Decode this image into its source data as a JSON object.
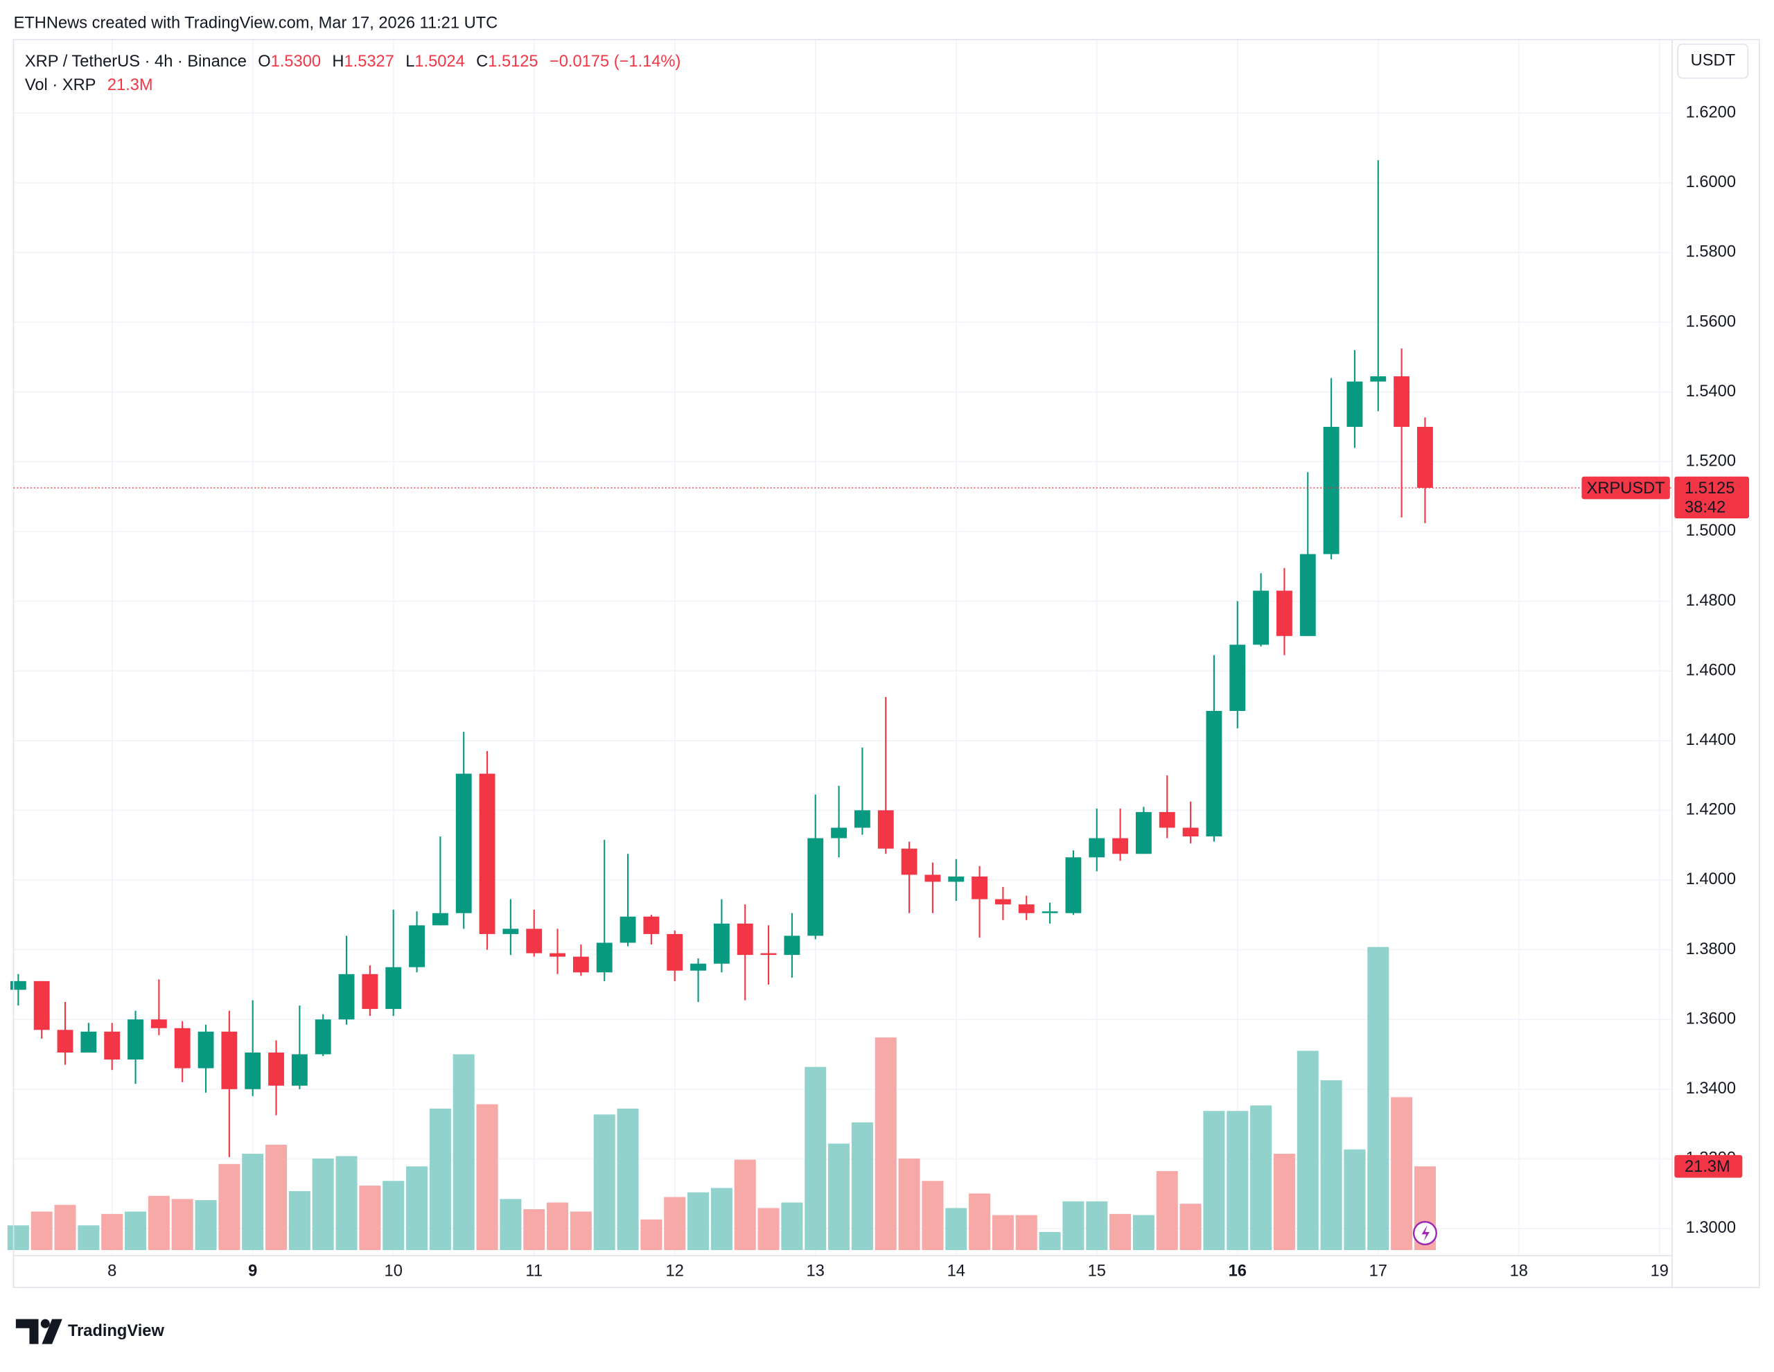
{
  "chart_data": {
    "type": "candlestick",
    "header": "ETHNews created with TradingView.com, Mar 17, 2026 11:21 UTC",
    "symbol": "XRP / TetherUS · 4h · Binance",
    "legend": {
      "open_key": "O",
      "open": "1.5300",
      "high_key": "H",
      "high": "1.5327",
      "low_key": "L",
      "low": "1.5024",
      "close_key": "C",
      "close": "1.5125",
      "change": "−0.0175 (−1.14%)"
    },
    "volume_title": "Vol · XRP",
    "volume_legend": "21.3M",
    "currency": "USDT",
    "price_tag": {
      "symbol": "XRPUSDT",
      "price": "1.5125",
      "countdown": "38:42"
    },
    "volume_tag": "21.3M",
    "brand": "TradingView",
    "x": [
      7.3333,
      7.5,
      7.6667,
      7.8333,
      8,
      8.1667,
      8.3333,
      8.5,
      8.6667,
      8.8333,
      9,
      9.1667,
      9.3333,
      9.5,
      9.6667,
      9.8333,
      10,
      10.1667,
      10.3333,
      10.5,
      10.6667,
      10.8333,
      11,
      11.1667,
      11.3333,
      11.5,
      11.6667,
      11.8333,
      12,
      12.1667,
      12.3333,
      12.5,
      12.6667,
      12.8333,
      13,
      13.1667,
      13.3333,
      13.5,
      13.6667,
      13.8333,
      14,
      14.1667,
      14.3333,
      14.5,
      14.6667,
      14.8333,
      15,
      15.1667,
      15.3333,
      15.5,
      15.6667,
      15.8333,
      16,
      16.1667,
      16.3333,
      16.5,
      16.6667,
      16.8333,
      17,
      17.1667,
      17.3333
    ],
    "open": [
      1.3685,
      1.371,
      1.357,
      1.3505,
      1.3565,
      1.3485,
      1.36,
      1.3575,
      1.346,
      1.3565,
      1.34,
      1.3505,
      1.341,
      1.35,
      1.36,
      1.373,
      1.363,
      1.375,
      1.387,
      1.3905,
      1.4305,
      1.3845,
      1.386,
      1.379,
      1.378,
      1.3735,
      1.382,
      1.3895,
      1.3845,
      1.374,
      1.376,
      1.3875,
      1.379,
      1.3785,
      1.384,
      1.412,
      1.415,
      1.42,
      1.409,
      1.4015,
      1.3995,
      1.401,
      1.3945,
      1.393,
      1.3905,
      1.3905,
      1.4065,
      1.412,
      1.4075,
      1.4195,
      1.415,
      1.4125,
      1.4485,
      1.4675,
      1.483,
      1.47,
      1.4935,
      1.53,
      1.543,
      1.5445,
      1.53
    ],
    "high": [
      1.373,
      1.371,
      1.365,
      1.359,
      1.359,
      1.3625,
      1.3715,
      1.3595,
      1.3585,
      1.3625,
      1.3655,
      1.354,
      1.364,
      1.3615,
      1.384,
      1.3755,
      1.3915,
      1.391,
      1.4125,
      1.4425,
      1.437,
      1.3945,
      1.3915,
      1.386,
      1.3815,
      1.4115,
      1.4075,
      1.39,
      1.3855,
      1.3775,
      1.3945,
      1.393,
      1.387,
      1.3905,
      1.4245,
      1.427,
      1.438,
      1.4525,
      1.411,
      1.405,
      1.406,
      1.404,
      1.398,
      1.3955,
      1.3935,
      1.4085,
      1.4205,
      1.4205,
      1.421,
      1.43,
      1.4225,
      1.4645,
      1.48,
      1.488,
      1.4895,
      1.517,
      1.544,
      1.552,
      1.6065,
      1.5525,
      1.5327
    ],
    "low": [
      1.364,
      1.3545,
      1.347,
      1.3505,
      1.3455,
      1.3415,
      1.3555,
      1.342,
      1.339,
      1.3205,
      1.338,
      1.3325,
      1.34,
      1.3495,
      1.3585,
      1.361,
      1.361,
      1.3735,
      1.387,
      1.386,
      1.38,
      1.3785,
      1.378,
      1.373,
      1.3725,
      1.371,
      1.381,
      1.3815,
      1.371,
      1.365,
      1.3735,
      1.3655,
      1.37,
      1.372,
      1.383,
      1.4065,
      1.413,
      1.4075,
      1.3905,
      1.3905,
      1.394,
      1.3835,
      1.3885,
      1.3885,
      1.3875,
      1.39,
      1.4025,
      1.4055,
      1.4075,
      1.412,
      1.4105,
      1.411,
      1.4435,
      1.467,
      1.4645,
      1.47,
      1.492,
      1.524,
      1.5345,
      1.504,
      1.5024
    ],
    "close": [
      1.371,
      1.357,
      1.3505,
      1.3565,
      1.3485,
      1.36,
      1.3575,
      1.346,
      1.3565,
      1.34,
      1.3505,
      1.341,
      1.35,
      1.36,
      1.373,
      1.363,
      1.375,
      1.387,
      1.3905,
      1.4305,
      1.3845,
      1.386,
      1.379,
      1.378,
      1.3735,
      1.382,
      1.3895,
      1.3845,
      1.374,
      1.376,
      1.3875,
      1.3785,
      1.3785,
      1.384,
      1.412,
      1.415,
      1.42,
      1.409,
      1.4015,
      1.3995,
      1.401,
      1.3945,
      1.393,
      1.3905,
      1.391,
      1.4065,
      1.412,
      1.4075,
      1.4195,
      1.415,
      1.4125,
      1.4485,
      1.4675,
      1.483,
      1.47,
      1.4935,
      1.53,
      1.543,
      1.5445,
      1.53,
      1.5125
    ],
    "volume": [
      6.3,
      9.8,
      11.5,
      6.3,
      9.2,
      9.8,
      13.8,
      13,
      12.7,
      21.9,
      24.5,
      26.8,
      15,
      23.3,
      23.9,
      16.4,
      17.6,
      21.3,
      36,
      49.8,
      37.1,
      13,
      10.4,
      12.1,
      9.8,
      34.5,
      36,
      7.8,
      13.5,
      14.7,
      15.8,
      23,
      10.7,
      12.1,
      46.6,
      27.1,
      32.5,
      54.1,
      23.3,
      17.6,
      10.7,
      14.4,
      8.9,
      8.9,
      4.6,
      12.4,
      12.4,
      9.2,
      8.9,
      20.1,
      11.8,
      35.4,
      35.4,
      36.8,
      24.5,
      50.7,
      43.2,
      25.6,
      77.1,
      38.9,
      21.3
    ],
    "up_color": "#089981",
    "down_color": "#f23645",
    "volume_up_color": "#92d2cc",
    "volume_down_color": "#f7a9a7",
    "xlim": [
      7.3,
      19.09
    ],
    "xticks": [
      8,
      9,
      10,
      11,
      12,
      13,
      14,
      15,
      16,
      17,
      18,
      19
    ],
    "bold_xticks": [
      9,
      16
    ],
    "ylim": [
      1.2922,
      1.6411
    ],
    "yticks": [
      {
        "value": 1.3,
        "label": "1.3000"
      },
      {
        "value": 1.32,
        "label": "1.3200"
      },
      {
        "value": 1.34,
        "label": "1.3400"
      },
      {
        "value": 1.36,
        "label": "1.3600"
      },
      {
        "value": 1.38,
        "label": "1.3800"
      },
      {
        "value": 1.4,
        "label": "1.4000"
      },
      {
        "value": 1.42,
        "label": "1.4200"
      },
      {
        "value": 1.44,
        "label": "1.4400"
      },
      {
        "value": 1.46,
        "label": "1.4600"
      },
      {
        "value": 1.48,
        "label": "1.4800"
      },
      {
        "value": 1.5,
        "label": "1.5000"
      },
      {
        "value": 1.52,
        "label": "1.5200"
      },
      {
        "value": 1.54,
        "label": "1.5400"
      },
      {
        "value": 1.56,
        "label": "1.5600"
      },
      {
        "value": 1.58,
        "label": "1.5800"
      },
      {
        "value": 1.6,
        "label": "1.6000"
      },
      {
        "value": 1.62,
        "label": "1.6200"
      }
    ],
    "volume_ylim": [
      0,
      80
    ],
    "grid": true
  }
}
